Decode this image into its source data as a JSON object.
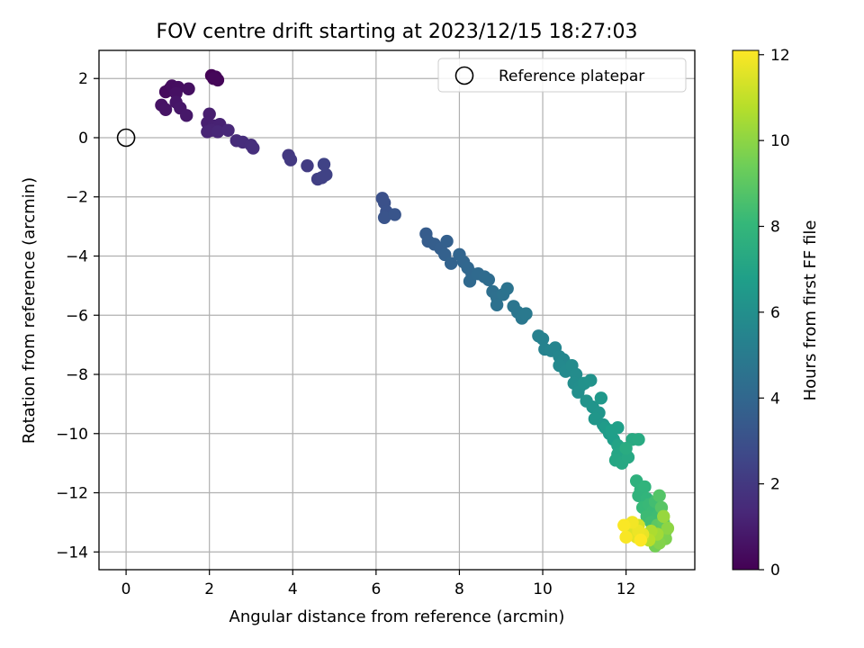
{
  "chart_data": {
    "type": "scatter",
    "title": "FOV centre drift starting at 2023/12/15 18:27:03",
    "xlabel": "Angular distance from reference (arcmin)",
    "ylabel": "Rotation from reference (arcmin)",
    "xlim": [
      -0.65,
      13.65
    ],
    "ylim": [
      -14.6,
      2.95
    ],
    "xticks": [
      0,
      2,
      4,
      6,
      8,
      10,
      12
    ],
    "yticks": [
      2,
      0,
      -2,
      -4,
      -6,
      -8,
      -10,
      -12,
      -14
    ],
    "grid": true,
    "legend": {
      "position": "top-right",
      "entries": [
        "Reference platepar"
      ]
    },
    "reference_point": {
      "x": 0,
      "y": 0,
      "label": "Reference platepar"
    },
    "colorbar": {
      "label": "Hours from first FF file",
      "colormap": "viridis",
      "range": [
        0,
        12.1
      ],
      "ticks": [
        0,
        2,
        4,
        6,
        8,
        10,
        12
      ]
    },
    "colors": {
      "viridis": [
        "#440154",
        "#482878",
        "#3e4989",
        "#31688e",
        "#26828e",
        "#1f9e89",
        "#35b779",
        "#6ece58",
        "#b5de2b",
        "#fde725"
      ],
      "grid": "#b0b0b0"
    },
    "points": [
      [
        2.05,
        2.1,
        0.05
      ],
      [
        2.15,
        2.05,
        0.1
      ],
      [
        2.2,
        1.95,
        0.15
      ],
      [
        2.1,
        2.0,
        0.2
      ],
      [
        1.05,
        1.65,
        0.3
      ],
      [
        0.95,
        1.55,
        0.35
      ],
      [
        1.1,
        1.75,
        0.4
      ],
      [
        1.25,
        1.7,
        0.45
      ],
      [
        1.5,
        1.65,
        0.5
      ],
      [
        1.2,
        1.5,
        0.55
      ],
      [
        0.85,
        1.1,
        0.6
      ],
      [
        0.95,
        0.95,
        0.65
      ],
      [
        1.2,
        1.2,
        0.7
      ],
      [
        1.3,
        1.0,
        0.75
      ],
      [
        1.45,
        0.75,
        0.8
      ],
      [
        2.0,
        0.8,
        1.0
      ],
      [
        1.95,
        0.5,
        1.05
      ],
      [
        2.1,
        0.4,
        1.1
      ],
      [
        2.25,
        0.45,
        1.15
      ],
      [
        2.05,
        0.25,
        1.2
      ],
      [
        1.95,
        0.2,
        1.25
      ],
      [
        2.2,
        0.2,
        1.3
      ],
      [
        2.45,
        0.25,
        1.35
      ],
      [
        2.65,
        -0.1,
        1.5
      ],
      [
        2.8,
        -0.15,
        1.55
      ],
      [
        3.0,
        -0.25,
        1.6
      ],
      [
        3.05,
        -0.35,
        1.65
      ],
      [
        3.9,
        -0.6,
        2.0
      ],
      [
        3.95,
        -0.75,
        2.05
      ],
      [
        4.35,
        -0.95,
        2.1
      ],
      [
        4.6,
        -1.4,
        2.3
      ],
      [
        4.7,
        -1.35,
        2.35
      ],
      [
        4.8,
        -1.25,
        2.4
      ],
      [
        4.75,
        -0.9,
        2.45
      ],
      [
        6.15,
        -2.05,
        3.0
      ],
      [
        6.2,
        -2.2,
        3.05
      ],
      [
        6.25,
        -2.5,
        3.1
      ],
      [
        6.2,
        -2.7,
        3.15
      ],
      [
        6.45,
        -2.6,
        3.2
      ],
      [
        7.2,
        -3.25,
        3.5
      ],
      [
        7.25,
        -3.5,
        3.55
      ],
      [
        7.4,
        -3.6,
        3.6
      ],
      [
        7.55,
        -3.75,
        3.65
      ],
      [
        7.7,
        -3.5,
        3.7
      ],
      [
        7.65,
        -3.95,
        3.75
      ],
      [
        7.8,
        -4.25,
        3.8
      ],
      [
        8.0,
        -3.95,
        3.9
      ],
      [
        8.1,
        -4.2,
        3.95
      ],
      [
        8.2,
        -4.4,
        4.0
      ],
      [
        8.3,
        -4.6,
        4.05
      ],
      [
        8.25,
        -4.85,
        4.1
      ],
      [
        8.45,
        -4.6,
        4.15
      ],
      [
        8.6,
        -4.7,
        4.2
      ],
      [
        8.7,
        -4.8,
        4.25
      ],
      [
        8.8,
        -5.2,
        4.4
      ],
      [
        8.9,
        -5.4,
        4.45
      ],
      [
        8.9,
        -5.65,
        4.5
      ],
      [
        9.05,
        -5.3,
        4.55
      ],
      [
        9.15,
        -5.1,
        4.6
      ],
      [
        9.3,
        -5.7,
        4.7
      ],
      [
        9.4,
        -5.9,
        4.75
      ],
      [
        9.5,
        -6.1,
        4.8
      ],
      [
        9.55,
        -6.0,
        4.85
      ],
      [
        9.6,
        -5.95,
        4.9
      ],
      [
        9.9,
        -6.7,
        5.3
      ],
      [
        10.0,
        -6.8,
        5.35
      ],
      [
        10.05,
        -7.15,
        5.4
      ],
      [
        10.2,
        -7.2,
        5.45
      ],
      [
        10.3,
        -7.1,
        5.5
      ],
      [
        10.4,
        -7.4,
        5.55
      ],
      [
        10.5,
        -7.5,
        5.6
      ],
      [
        10.4,
        -7.7,
        5.7
      ],
      [
        10.55,
        -7.9,
        5.75
      ],
      [
        10.7,
        -7.7,
        5.8
      ],
      [
        10.8,
        -8.0,
        5.85
      ],
      [
        10.75,
        -8.3,
        5.9
      ],
      [
        10.9,
        -8.4,
        5.95
      ],
      [
        10.85,
        -8.6,
        6.0
      ],
      [
        11.0,
        -8.3,
        6.1
      ],
      [
        11.15,
        -8.2,
        6.15
      ],
      [
        11.05,
        -8.9,
        6.2
      ],
      [
        11.2,
        -9.1,
        6.25
      ],
      [
        11.35,
        -9.3,
        6.3
      ],
      [
        11.25,
        -9.5,
        6.35
      ],
      [
        11.45,
        -9.7,
        6.4
      ],
      [
        11.4,
        -8.8,
        6.45
      ],
      [
        11.5,
        -9.8,
        6.6
      ],
      [
        11.6,
        -10.0,
        6.65
      ],
      [
        11.7,
        -10.2,
        6.7
      ],
      [
        11.65,
        -9.9,
        6.75
      ],
      [
        11.8,
        -9.8,
        6.8
      ],
      [
        11.8,
        -10.4,
        7.0
      ],
      [
        11.9,
        -10.5,
        7.05
      ],
      [
        11.8,
        -10.7,
        7.1
      ],
      [
        11.75,
        -10.9,
        7.15
      ],
      [
        11.9,
        -11.0,
        7.2
      ],
      [
        12.05,
        -10.8,
        7.25
      ],
      [
        12.15,
        -10.2,
        7.3
      ],
      [
        12.3,
        -10.2,
        7.35
      ],
      [
        12.0,
        -10.5,
        7.4
      ],
      [
        12.25,
        -11.6,
        7.7
      ],
      [
        12.35,
        -11.9,
        7.75
      ],
      [
        12.3,
        -12.1,
        7.8
      ],
      [
        12.45,
        -11.8,
        7.85
      ],
      [
        12.5,
        -12.2,
        7.9
      ],
      [
        12.4,
        -12.5,
        8.1
      ],
      [
        12.55,
        -12.4,
        8.15
      ],
      [
        12.65,
        -12.6,
        8.2
      ],
      [
        12.5,
        -12.8,
        8.25
      ],
      [
        12.75,
        -12.8,
        8.3
      ],
      [
        12.6,
        -13.0,
        8.35
      ],
      [
        12.7,
        -12.3,
        8.4
      ],
      [
        12.8,
        -12.1,
        8.8
      ],
      [
        12.85,
        -12.5,
        8.9
      ],
      [
        12.75,
        -13.1,
        9.0
      ],
      [
        12.9,
        -13.0,
        9.1
      ],
      [
        12.95,
        -13.3,
        9.2
      ],
      [
        12.85,
        -13.5,
        9.3
      ],
      [
        12.6,
        -13.6,
        9.4
      ],
      [
        12.7,
        -13.8,
        9.5
      ],
      [
        12.95,
        -13.55,
        9.7
      ],
      [
        12.8,
        -13.7,
        9.8
      ],
      [
        13.0,
        -13.2,
        10.0
      ],
      [
        12.9,
        -12.8,
        10.2
      ],
      [
        12.75,
        -13.4,
        10.4
      ],
      [
        12.6,
        -13.3,
        10.6
      ],
      [
        12.55,
        -13.6,
        10.8
      ],
      [
        12.4,
        -13.5,
        11.0
      ],
      [
        12.3,
        -13.1,
        11.3
      ],
      [
        12.2,
        -13.2,
        11.4
      ],
      [
        12.1,
        -13.4,
        11.5
      ],
      [
        12.25,
        -13.5,
        11.6
      ],
      [
        12.4,
        -13.4,
        11.7
      ],
      [
        12.3,
        -13.3,
        11.8
      ],
      [
        12.15,
        -13.0,
        11.9
      ],
      [
        12.0,
        -13.5,
        12.0
      ],
      [
        11.95,
        -13.1,
        12.05
      ],
      [
        12.35,
        -13.6,
        12.1
      ]
    ]
  }
}
